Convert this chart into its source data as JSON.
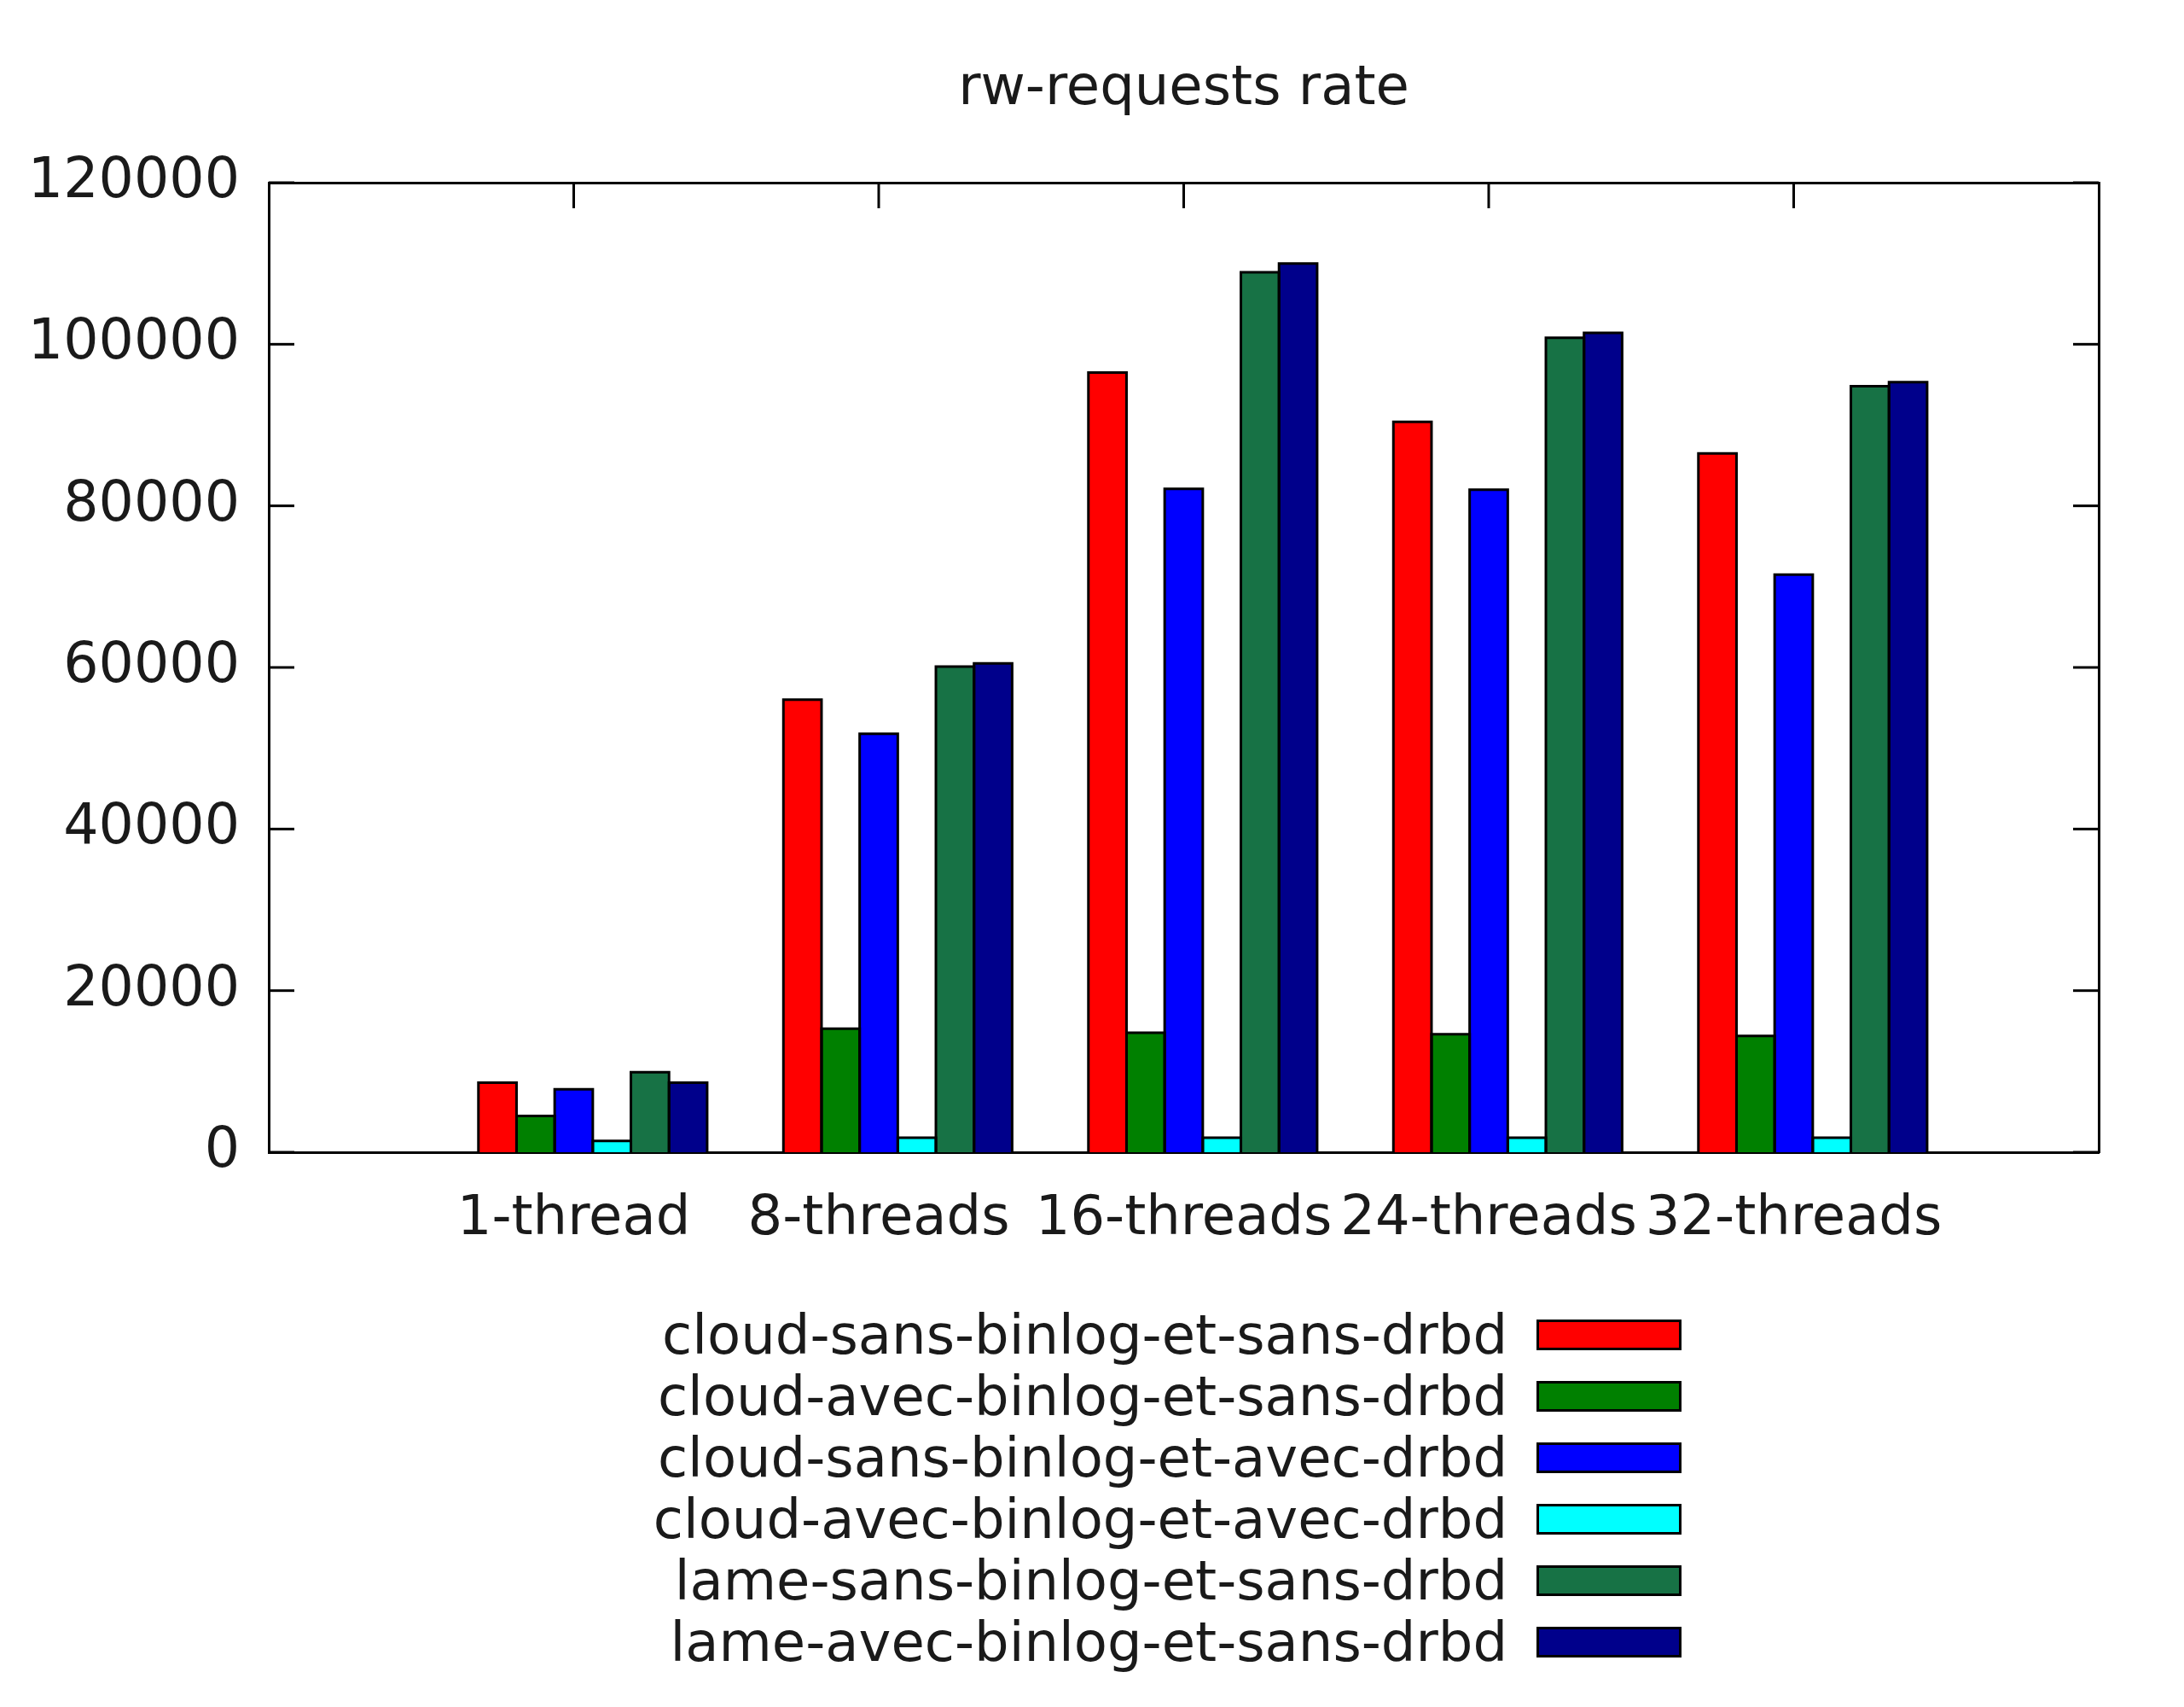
{
  "chart_data": {
    "type": "bar",
    "title": "rw-requests rate",
    "categories": [
      "1-thread",
      "8-threads",
      "16-threads",
      "24-threads",
      "32-threads"
    ],
    "series": [
      {
        "name": "cloud-sans-binlog-et-sans-drbd",
        "color": "#ff0000",
        "values": [
          8600,
          56000,
          96500,
          90400,
          86500
        ]
      },
      {
        "name": "cloud-avec-binlog-et-sans-drbd",
        "color": "#008000",
        "values": [
          4500,
          15300,
          14800,
          14600,
          14400
        ]
      },
      {
        "name": "cloud-sans-binlog-et-avec-drbd",
        "color": "#0000ff",
        "values": [
          7800,
          51800,
          82100,
          82000,
          71500
        ]
      },
      {
        "name": "cloud-avec-binlog-et-avec-drbd",
        "color": "#00ffff",
        "values": [
          1400,
          1800,
          1800,
          1800,
          1800
        ]
      },
      {
        "name": "lame-sans-binlog-et-sans-drbd",
        "color": "#177245",
        "values": [
          9900,
          60100,
          108900,
          100800,
          94800
        ]
      },
      {
        "name": "lame-avec-binlog-et-sans-drbd",
        "color": "#00008b",
        "values": [
          8600,
          60500,
          110000,
          101400,
          95300
        ]
      }
    ],
    "ylim": [
      0,
      120000
    ],
    "yticks": [
      0,
      20000,
      40000,
      60000,
      80000,
      100000,
      120000
    ],
    "legend": "bottom"
  }
}
